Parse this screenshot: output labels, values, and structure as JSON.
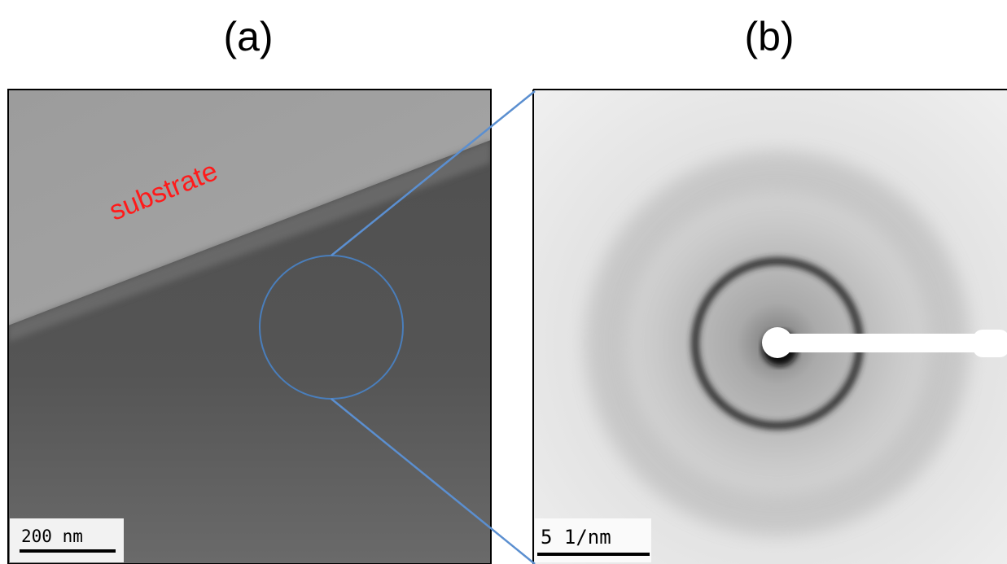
{
  "panels": [
    {
      "label": "(a)",
      "annotation": "substrate",
      "scale_bar": "200 nm"
    },
    {
      "label": "(b)",
      "scale_bar": "5 1/nm"
    }
  ]
}
